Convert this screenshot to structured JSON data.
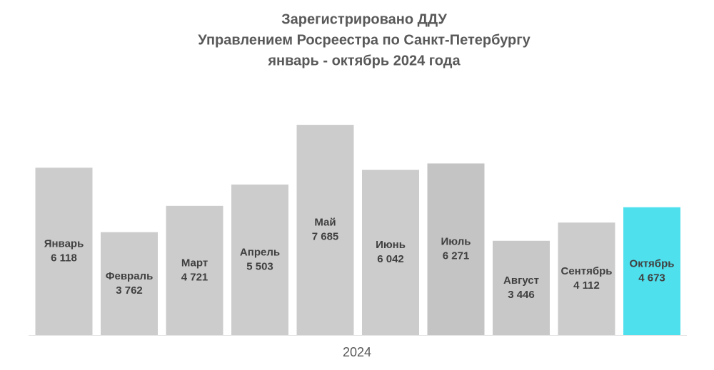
{
  "chart_data": {
    "type": "bar",
    "title": [
      "Зарегистрировано ДДУ",
      "Управлением Росреестра по Санкт-Петербургу",
      "январь - октябрь 2024 года"
    ],
    "x_label": "2024",
    "categories": [
      "Январь",
      "Февраль",
      "Март",
      "Апрель",
      "Май",
      "Июнь",
      "Июль",
      "Август",
      "Сентябрь",
      "Октябрь"
    ],
    "values": [
      6118,
      3762,
      4721,
      5503,
      7685,
      6042,
      6271,
      3446,
      4112,
      4673
    ],
    "value_labels": [
      "6 118",
      "3 762",
      "4 721",
      "5 503",
      "7 685",
      "6 042",
      "6 271",
      "3 446",
      "4 112",
      "4 673"
    ],
    "colors": [
      "#cccccc",
      "#cccccc",
      "#cccccc",
      "#cccccc",
      "#cccccc",
      "#cccccc",
      "#c4c4c4",
      "#c8c8c8",
      "#cccccc",
      "#4fe0ee"
    ],
    "ylim": [
      0,
      8000
    ]
  }
}
